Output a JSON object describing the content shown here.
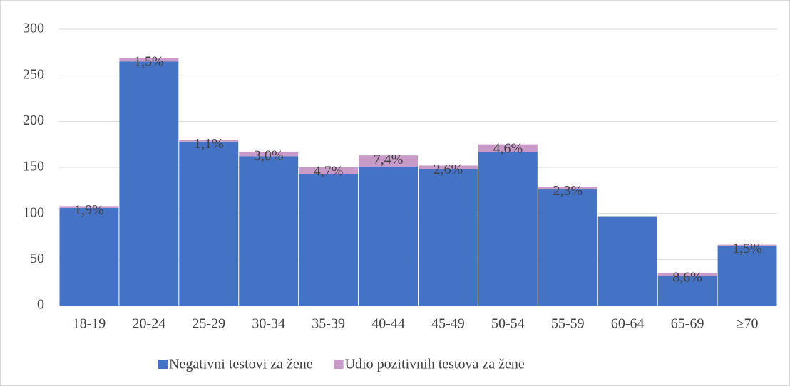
{
  "chart_data": {
    "type": "stacked_bar",
    "categories": [
      "18-19",
      "20-24",
      "25-29",
      "30-34",
      "35-39",
      "40-44",
      "45-49",
      "50-54",
      "55-59",
      "60-64",
      "65-69",
      "≥70"
    ],
    "series": [
      {
        "name": "Negativni testovi za žene",
        "color": "#4472c4",
        "values": [
          106,
          265,
          178,
          162,
          143,
          151,
          148,
          167,
          126,
          97,
          32,
          65
        ]
      },
      {
        "name": "Udio pozitivnih testova za žene",
        "color": "#c89ac8",
        "values": [
          2,
          4,
          2,
          5,
          7,
          12,
          4,
          8,
          3,
          0,
          3,
          1
        ],
        "labels": [
          "1,9%",
          "1,5%",
          "1,1%",
          "3,0%",
          "4,7%",
          "7,4%",
          "2,6%",
          "4,6%",
          "2,3%",
          null,
          "8,6%",
          "1,5%"
        ]
      }
    ],
    "ylim": [
      0,
      300
    ],
    "yticks": [
      0,
      50,
      100,
      150,
      200,
      250,
      300
    ],
    "grid": true,
    "legend": "bottom"
  }
}
